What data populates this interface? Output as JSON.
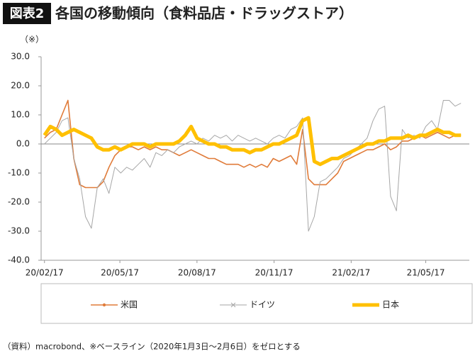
{
  "chart_data": {
    "type": "line",
    "badge": "図表2",
    "title": "各国の移動傾向（食料品店・ドラッグストア）",
    "unit_note": "（※）",
    "source": "（資料）macrobond、※ベースライン（2020年1月3日～2月6日）をゼロとする",
    "x": [
      "20/02/17",
      "20/02/24",
      "20/03/02",
      "20/03/09",
      "20/03/16",
      "20/03/23",
      "20/03/30",
      "20/04/06",
      "20/04/13",
      "20/04/20",
      "20/04/27",
      "20/05/04",
      "20/05/11",
      "20/05/18",
      "20/05/25",
      "20/06/01",
      "20/06/08",
      "20/06/15",
      "20/06/22",
      "20/06/29",
      "20/07/06",
      "20/07/13",
      "20/07/20",
      "20/07/27",
      "20/08/03",
      "20/08/10",
      "20/08/17",
      "20/08/24",
      "20/08/31",
      "20/09/07",
      "20/09/14",
      "20/09/21",
      "20/09/28",
      "20/10/05",
      "20/10/12",
      "20/10/19",
      "20/10/26",
      "20/11/02",
      "20/11/09",
      "20/11/16",
      "20/11/23",
      "20/11/30",
      "20/12/07",
      "20/12/14",
      "20/12/21",
      "20/12/28",
      "21/01/04",
      "21/01/11",
      "21/01/18",
      "21/01/25",
      "21/02/01",
      "21/02/08",
      "21/02/15",
      "21/02/22",
      "21/03/01",
      "21/03/08",
      "21/03/15",
      "21/03/22",
      "21/03/29",
      "21/04/05",
      "21/04/12",
      "21/04/19",
      "21/04/26",
      "21/05/03",
      "21/05/10",
      "21/05/17",
      "21/05/24",
      "21/05/31",
      "21/06/07",
      "21/06/14",
      "21/06/21",
      "21/06/28"
    ],
    "series": [
      {
        "name": "米国",
        "color": "#e07b39",
        "values": [
          2,
          4,
          5,
          10,
          15,
          -5,
          -14,
          -15,
          -15,
          -15,
          -13,
          -8,
          -4,
          -2,
          -1,
          -1,
          -2,
          -1,
          -2,
          -1,
          -2,
          -2,
          -3,
          -4,
          -3,
          -2,
          -3,
          -4,
          -5,
          -5,
          -6,
          -7,
          -7,
          -7,
          -8,
          -7,
          -8,
          -7,
          -8,
          -5,
          -6,
          -5,
          -4,
          -7,
          5,
          -12,
          -14,
          -14,
          -14,
          -12,
          -10,
          -6,
          -5,
          -4,
          -3,
          -2,
          -2,
          -1,
          0,
          -2,
          -1,
          1,
          1,
          2,
          3,
          2,
          3,
          4,
          3,
          2,
          3,
          3
        ]
      },
      {
        "name": "ドイツ",
        "color": "#a6a6a6",
        "values": [
          0,
          2,
          4,
          8,
          9,
          -5,
          -12,
          -25,
          -29,
          -15,
          -12,
          -17,
          -8,
          -10,
          -8,
          -9,
          -7,
          -5,
          -8,
          -3,
          -4,
          -2,
          -3,
          -1,
          0,
          1,
          0,
          2,
          1,
          3,
          2,
          3,
          1,
          3,
          2,
          1,
          2,
          1,
          0,
          2,
          3,
          2,
          5,
          6,
          9,
          -30,
          -25,
          -13,
          -12,
          -10,
          -8,
          -5,
          -4,
          -2,
          0,
          2,
          8,
          12,
          13,
          -18,
          -23,
          5,
          2,
          3,
          2,
          6,
          8,
          5,
          15,
          15,
          13,
          14
        ]
      },
      {
        "name": "日本",
        "color": "#ffc000",
        "values": [
          3,
          6,
          5,
          3,
          4,
          5,
          4,
          3,
          2,
          -1,
          -2,
          -2,
          -1,
          -2,
          -1,
          0,
          0,
          0,
          -1,
          0,
          0,
          0,
          0,
          1,
          3,
          6,
          2,
          1,
          0,
          0,
          -1,
          -1,
          -2,
          -2,
          -2,
          -3,
          -2,
          -2,
          -1,
          0,
          0,
          1,
          2,
          3,
          8,
          9,
          -6,
          -7,
          -6,
          -5,
          -5,
          -4,
          -3,
          -2,
          -1,
          0,
          0,
          1,
          1,
          2,
          2,
          2,
          3,
          2,
          3,
          3,
          4,
          5,
          4,
          4,
          3,
          3
        ]
      }
    ],
    "xlim": [
      "20/02/13",
      "21/07/08"
    ],
    "xticks": [
      "20/02/17",
      "20/05/17",
      "20/08/17",
      "20/11/17",
      "21/02/17",
      "21/05/17"
    ],
    "ylim": [
      -40,
      30
    ],
    "yticks": [
      {
        "value": 30,
        "label": "30.0"
      },
      {
        "value": 20,
        "label": "20.0"
      },
      {
        "value": 10,
        "label": "10.0"
      },
      {
        "value": 0,
        "label": "0.0"
      },
      {
        "value": -10,
        "label": "-10.0"
      },
      {
        "value": -20,
        "label": "-20.0"
      },
      {
        "value": -30,
        "label": "-30.0"
      },
      {
        "value": -40,
        "label": "-40.0"
      }
    ],
    "zero_line": true,
    "legend": "bottom"
  }
}
